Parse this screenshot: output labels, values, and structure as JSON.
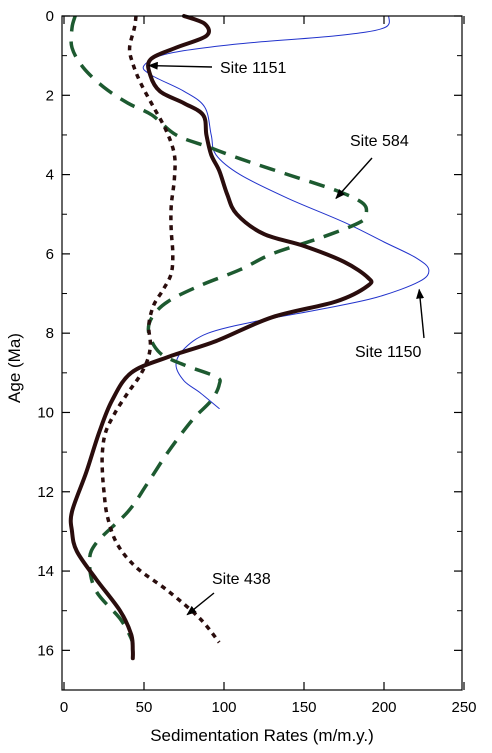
{
  "chart_data": {
    "type": "line",
    "xlabel": "Sedimentation Rates (m/m.y.)",
    "ylabel": "Age (Ma)",
    "xlim": [
      0,
      250
    ],
    "ylim": [
      17,
      0
    ],
    "y_axis": "inverted",
    "xticks": [
      0,
      50,
      100,
      150,
      200,
      250
    ],
    "yticks": [
      0,
      2,
      4,
      6,
      8,
      10,
      12,
      14,
      16
    ],
    "grid": false,
    "legend": "none",
    "series": [
      {
        "name": "Site 1151",
        "color": "#2a0d0d",
        "style": "thick-solid",
        "points": [
          [
            75,
            0
          ],
          [
            88,
            0.2
          ],
          [
            89,
            0.5
          ],
          [
            70,
            0.8
          ],
          [
            54,
            1.1
          ],
          [
            54,
            1.5
          ],
          [
            60,
            1.9
          ],
          [
            75,
            2.2
          ],
          [
            87,
            2.5
          ],
          [
            89,
            3.0
          ],
          [
            92,
            3.5
          ],
          [
            97,
            3.9
          ],
          [
            102,
            4.5
          ],
          [
            108,
            5.0
          ],
          [
            125,
            5.5
          ],
          [
            150,
            5.8
          ],
          [
            175,
            6.2
          ],
          [
            190,
            6.6
          ],
          [
            190,
            6.8
          ],
          [
            170,
            7.2
          ],
          [
            130,
            7.6
          ],
          [
            95,
            8.2
          ],
          [
            65,
            8.6
          ],
          [
            42,
            9.0
          ],
          [
            30,
            9.7
          ],
          [
            22,
            10.5
          ],
          [
            14,
            11.5
          ],
          [
            5,
            12.5
          ],
          [
            5,
            13.0
          ],
          [
            8,
            13.5
          ],
          [
            20,
            14.2
          ],
          [
            35,
            15.0
          ],
          [
            42,
            15.6
          ],
          [
            43,
            16.0
          ],
          [
            43,
            16.2
          ]
        ]
      },
      {
        "name": "Site 1150",
        "color": "#2233cc",
        "style": "thin-solid",
        "points": [
          [
            203,
            0
          ],
          [
            200,
            0.3
          ],
          [
            170,
            0.5
          ],
          [
            110,
            0.7
          ],
          [
            65,
            0.95
          ],
          [
            50,
            1.25
          ],
          [
            55,
            1.5
          ],
          [
            75,
            1.9
          ],
          [
            88,
            2.3
          ],
          [
            92,
            3.0
          ],
          [
            95,
            3.5
          ],
          [
            110,
            4.0
          ],
          [
            140,
            4.6
          ],
          [
            175,
            5.2
          ],
          [
            200,
            5.7
          ],
          [
            220,
            6.1
          ],
          [
            228,
            6.4
          ],
          [
            222,
            6.7
          ],
          [
            195,
            7.1
          ],
          [
            160,
            7.4
          ],
          [
            120,
            7.7
          ],
          [
            90,
            8.0
          ],
          [
            75,
            8.4
          ],
          [
            70,
            8.8
          ],
          [
            75,
            9.2
          ],
          [
            85,
            9.5
          ],
          [
            97,
            9.9
          ]
        ]
      },
      {
        "name": "Site 584",
        "color": "#1d5a30",
        "style": "dashed",
        "points": [
          [
            7,
            0
          ],
          [
            5,
            0.3
          ],
          [
            5,
            0.8
          ],
          [
            12,
            1.3
          ],
          [
            25,
            1.8
          ],
          [
            40,
            2.2
          ],
          [
            55,
            2.5
          ],
          [
            70,
            3.0
          ],
          [
            90,
            3.3
          ],
          [
            110,
            3.6
          ],
          [
            140,
            4.0
          ],
          [
            170,
            4.4
          ],
          [
            186,
            4.7
          ],
          [
            189,
            4.95
          ],
          [
            185,
            5.2
          ],
          [
            160,
            5.6
          ],
          [
            130,
            6.0
          ],
          [
            110,
            6.4
          ],
          [
            85,
            6.8
          ],
          [
            65,
            7.2
          ],
          [
            55,
            7.6
          ],
          [
            53,
            8.0
          ],
          [
            60,
            8.5
          ],
          [
            75,
            8.8
          ],
          [
            95,
            9.1
          ],
          [
            97,
            9.3
          ],
          [
            92,
            9.7
          ],
          [
            80,
            10.2
          ],
          [
            65,
            11.0
          ],
          [
            52,
            11.8
          ],
          [
            40,
            12.5
          ],
          [
            20,
            13.3
          ],
          [
            16,
            13.8
          ],
          [
            20,
            14.5
          ],
          [
            35,
            15.2
          ],
          [
            42,
            15.7
          ],
          [
            43,
            15.9
          ]
        ]
      },
      {
        "name": "Site 438",
        "color": "#2a0d0d",
        "style": "dotted",
        "points": [
          [
            45,
            0
          ],
          [
            44,
            0.3
          ],
          [
            41,
            0.8
          ],
          [
            43,
            1.2
          ],
          [
            48,
            1.7
          ],
          [
            56,
            2.3
          ],
          [
            64,
            2.9
          ],
          [
            69,
            3.5
          ],
          [
            69,
            4.1
          ],
          [
            67,
            4.8
          ],
          [
            67,
            5.4
          ],
          [
            68,
            6.0
          ],
          [
            67,
            6.5
          ],
          [
            62,
            6.9
          ],
          [
            56,
            7.3
          ],
          [
            53,
            7.8
          ],
          [
            54,
            8.3
          ],
          [
            52,
            8.7
          ],
          [
            47,
            9.1
          ],
          [
            40,
            9.5
          ],
          [
            32,
            10.0
          ],
          [
            26,
            10.5
          ],
          [
            24,
            11.0
          ],
          [
            24,
            11.5
          ],
          [
            25,
            12.0
          ],
          [
            27,
            12.6
          ],
          [
            33,
            13.3
          ],
          [
            45,
            13.9
          ],
          [
            65,
            14.5
          ],
          [
            85,
            15.2
          ],
          [
            97,
            15.8
          ]
        ]
      }
    ],
    "annotations": [
      {
        "text": "Site 1151",
        "arrow_to": [
          53,
          1.25
        ]
      },
      {
        "text": "Site 584",
        "arrow_to": [
          170,
          4.6
        ]
      },
      {
        "text": "Site 1150",
        "arrow_to": [
          222,
          6.9
        ]
      },
      {
        "text": "Site 438",
        "arrow_to": [
          77,
          15.1
        ]
      }
    ]
  }
}
